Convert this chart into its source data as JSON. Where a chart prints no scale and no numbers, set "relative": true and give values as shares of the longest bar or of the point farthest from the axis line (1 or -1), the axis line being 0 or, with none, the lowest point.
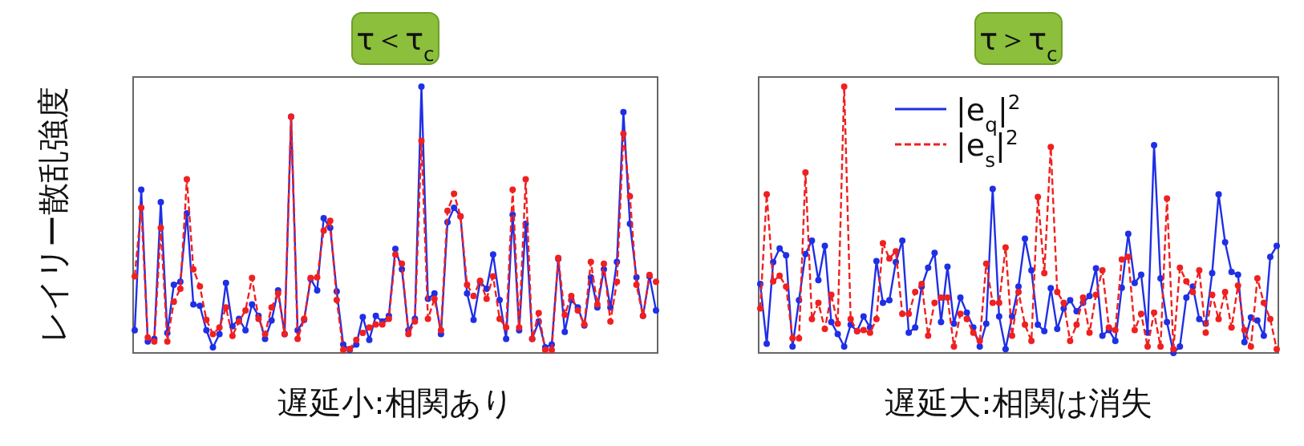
{
  "chart_data": [
    {
      "type": "line",
      "title": "τ＜τ$_{c}$",
      "xlabel": "遅延小:相関あり",
      "ylabel": "レイリー散乱強度",
      "relative": true,
      "marker": "circle",
      "legend": false,
      "categories": [
        null,
        null,
        null,
        null,
        null,
        null,
        null,
        null,
        null,
        null,
        null,
        null,
        null,
        null,
        null,
        null,
        null,
        null,
        null,
        null,
        null,
        null,
        null,
        null,
        null,
        null,
        null,
        null,
        null,
        null,
        null,
        null,
        null,
        null,
        null,
        null,
        null,
        null,
        null,
        null,
        null,
        null,
        null,
        null,
        null,
        null,
        null,
        null,
        null,
        null,
        null,
        null,
        null,
        null,
        null,
        null,
        null,
        null,
        null,
        null,
        null,
        null,
        null,
        null,
        null,
        null,
        null,
        null,
        null,
        null,
        null,
        null,
        null,
        null,
        null,
        null,
        null,
        null,
        null,
        null,
        null
      ],
      "series": [
        {
          "color": "#1f2fe6",
          "line_style": "solid",
          "values": [
            0.085,
            0.613,
            0.043,
            0.053,
            0.566,
            0.075,
            0.256,
            0.267,
            0.524,
            0.182,
            0.177,
            0.085,
            0.021,
            0.071,
            0.263,
            0.1,
            0.128,
            0.085,
            0.182,
            0.139,
            0.053,
            0.122,
            0.235,
            0.071,
            0.887,
            0.085,
            0.124,
            0.278,
            0.235,
            0.506,
            0.47,
            0.231,
            0.032,
            0.011,
            0.032,
            0.135,
            0.049,
            0.139,
            0.118,
            0.139,
            0.391,
            0.314,
            0.085,
            0.128,
            1,
            0.203,
            0.224,
            0.071,
            0.491,
            0.545,
            0.513,
            0.224,
            0.124,
            0.267,
            0.241,
            0.37,
            0.199,
            0.053,
            0.519,
            0.085,
            0.485,
            0.053,
            0.118,
            0.021,
            0.032,
            0.353,
            0.079,
            0.199,
            0.171,
            0.103,
            0.284,
            0.171,
            0.314,
            0.171,
            0.342,
            0.904,
            0.485,
            0.284,
            0.139,
            0.288,
            0.16
          ]
        },
        {
          "color": "#f02020",
          "line_style": "dashed",
          "values": [
            0.288,
            0.545,
            0.058,
            0.043,
            0.47,
            0.043,
            0.192,
            0.241,
            0.652,
            0.314,
            0.25,
            0.124,
            0.071,
            0.096,
            0.171,
            0.064,
            0.118,
            0.16,
            0.282,
            0.128,
            0.071,
            0.171,
            0.224,
            0.071,
            0.887,
            0.053,
            0.128,
            0.282,
            0.284,
            0.459,
            0.496,
            0.199,
            0.011,
            0.015,
            0.049,
            0.075,
            0.096,
            0.107,
            0.107,
            0.128,
            0.37,
            0.335,
            0.071,
            0.118,
            0.797,
            0.128,
            0.203,
            0.085,
            0.534,
            0.598,
            0.513,
            0.256,
            0.214,
            0.271,
            0.203,
            0.288,
            0.128,
            0.096,
            0.613,
            0.096,
            0.652,
            0.053,
            0.15,
            0.011,
            0.011,
            0.357,
            0.143,
            0.214,
            0.16,
            0.107,
            0.342,
            0.182,
            0.335,
            0.118,
            0.267,
            0.823,
            0.588,
            0.256,
            0.139,
            0.293,
            0.267
          ]
        }
      ]
    },
    {
      "type": "line",
      "title": "τ＞τ$_{c}$",
      "xlabel": "遅延大:相関は消失",
      "relative": true,
      "marker": "circle",
      "legend": "top",
      "categories": [
        null,
        null,
        null,
        null,
        null,
        null,
        null,
        null,
        null,
        null,
        null,
        null,
        null,
        null,
        null,
        null,
        null,
        null,
        null,
        null,
        null,
        null,
        null,
        null,
        null,
        null,
        null,
        null,
        null,
        null,
        null,
        null,
        null,
        null,
        null,
        null,
        null,
        null,
        null,
        null,
        null,
        null,
        null,
        null,
        null,
        null,
        null,
        null,
        null,
        null,
        null,
        null,
        null,
        null,
        null,
        null,
        null,
        null,
        null,
        null,
        null,
        null,
        null,
        null,
        null,
        null,
        null,
        null,
        null,
        null,
        null,
        null,
        null,
        null,
        null,
        null,
        null,
        null,
        null,
        null,
        null
      ],
      "series": [
        {
          "name": "|e$_{q}$|$^{2}$",
          "color": "#1f2fe6",
          "line_style": "solid",
          "values": [
            0.259,
            0.035,
            0.341,
            0.392,
            0.367,
            0.024,
            0.198,
            0.371,
            0.422,
            0.273,
            0.402,
            0.116,
            0.071,
            0.024,
            0.106,
            0.082,
            0.137,
            0.096,
            0.345,
            0.188,
            0.198,
            0.341,
            0.422,
            0.076,
            0.096,
            0.249,
            0.32,
            0.376,
            0.116,
            0.324,
            0.11,
            0.208,
            0.151,
            0.096,
            0.024,
            0.11,
            0.616,
            0.137,
            0.014,
            0.137,
            0.249,
            0.429,
            0.31,
            0.106,
            0.082,
            0.243,
            0.09,
            0.167,
            0.198,
            0.157,
            0.188,
            0.214,
            0.318,
            0.065,
            0.086,
            0.045,
            0.245,
            0.447,
            0.263,
            0.294,
            0.076,
            0.78,
            0.28,
            0.116,
            0,
            0.024,
            0.208,
            0.249,
            0.127,
            0.11,
            0.3,
            0.596,
            0.416,
            0.304,
            0.294,
            0.041,
            0.133,
            0.122,
            0.065,
            0.361,
            0.402
          ]
        },
        {
          "name": "|e$_{s}$|$^{2}$",
          "color": "#f02020",
          "line_style": "dashed",
          "values": [
            0.167,
            0.596,
            0.269,
            0.29,
            0.249,
            0.055,
            0.055,
            0.678,
            0.127,
            0.188,
            0.09,
            0.218,
            0.11,
            1,
            0.127,
            0.082,
            0.086,
            0.076,
            0.127,
            0.412,
            0.355,
            0.382,
            0.147,
            0.147,
            0.229,
            0.259,
            0.065,
            0.188,
            0.208,
            0.208,
            0.024,
            0.147,
            0.127,
            0.076,
            0.045,
            0.335,
            0.188,
            0.188,
            0.396,
            0.065,
            0.229,
            0.106,
            0.045,
            0.586,
            0.3,
            0.773,
            0.229,
            0.188,
            0.045,
            0.106,
            0.208,
            0.076,
            0.218,
            0.31,
            0.096,
            0.086,
            0.351,
            0.361,
            0.086,
            0.147,
            0.024,
            0.151,
            0.024,
            0.58,
            0.014,
            0.32,
            0.269,
            0.229,
            0.31,
            0.076,
            0.218,
            0.127,
            0.229,
            0.096,
            0.253,
            0.086,
            0.024,
            0.28,
            0.188,
            0.127,
            0.014
          ]
        }
      ]
    }
  ]
}
